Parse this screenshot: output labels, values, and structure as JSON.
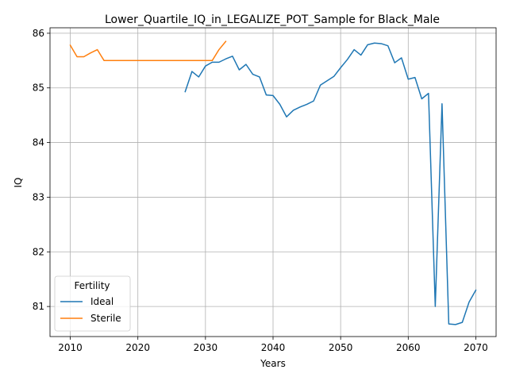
{
  "chart_data": {
    "type": "line",
    "title": "Lower_Quartile_IQ_in_LEGALIZE_POT_Sample for Black_Male",
    "xlabel": "Years",
    "ylabel": "IQ",
    "xlim": [
      2007,
      2073
    ],
    "ylim": [
      80.45,
      86.1
    ],
    "xticks": [
      2010,
      2020,
      2030,
      2040,
      2050,
      2060,
      2070
    ],
    "yticks": [
      81,
      82,
      83,
      84,
      85,
      86
    ],
    "grid": true,
    "legend": {
      "title": "Fertility",
      "placement": "lower-left"
    },
    "series": [
      {
        "name": "Ideal",
        "color": "#1f77b4",
        "x": [
          2027,
          2028,
          2029,
          2030,
          2031,
          2032,
          2033,
          2034,
          2035,
          2036,
          2037,
          2038,
          2039,
          2040,
          2041,
          2042,
          2043,
          2044,
          2045,
          2046,
          2047,
          2048,
          2049,
          2050,
          2051,
          2052,
          2053,
          2054,
          2055,
          2056,
          2057,
          2058,
          2059,
          2060,
          2061,
          2062,
          2063,
          2064,
          2065,
          2066,
          2067,
          2068,
          2069,
          2070
        ],
        "y": [
          84.93,
          85.3,
          85.2,
          85.4,
          85.47,
          85.47,
          85.53,
          85.58,
          85.33,
          85.43,
          85.25,
          85.2,
          84.87,
          84.86,
          84.7,
          84.47,
          84.59,
          84.65,
          84.7,
          84.76,
          85.05,
          85.13,
          85.21,
          85.37,
          85.52,
          85.7,
          85.6,
          85.79,
          85.82,
          85.81,
          85.77,
          85.46,
          85.55,
          85.16,
          85.19,
          84.8,
          84.9,
          81.0,
          84.71,
          80.68,
          80.67,
          80.71,
          81.08,
          81.3
        ]
      },
      {
        "name": "Sterile",
        "color": "#ff7f0e",
        "x": [
          2010,
          2011,
          2012,
          2013,
          2014,
          2015,
          2016,
          2017,
          2018,
          2019,
          2020,
          2021,
          2022,
          2023,
          2024,
          2025,
          2026,
          2027,
          2028,
          2029,
          2030,
          2031,
          2032,
          2033
        ],
        "y": [
          85.78,
          85.57,
          85.57,
          85.64,
          85.7,
          85.5,
          85.5,
          85.5,
          85.5,
          85.5,
          85.5,
          85.5,
          85.5,
          85.5,
          85.5,
          85.5,
          85.5,
          85.5,
          85.5,
          85.5,
          85.5,
          85.5,
          85.7,
          85.85
        ]
      }
    ]
  }
}
